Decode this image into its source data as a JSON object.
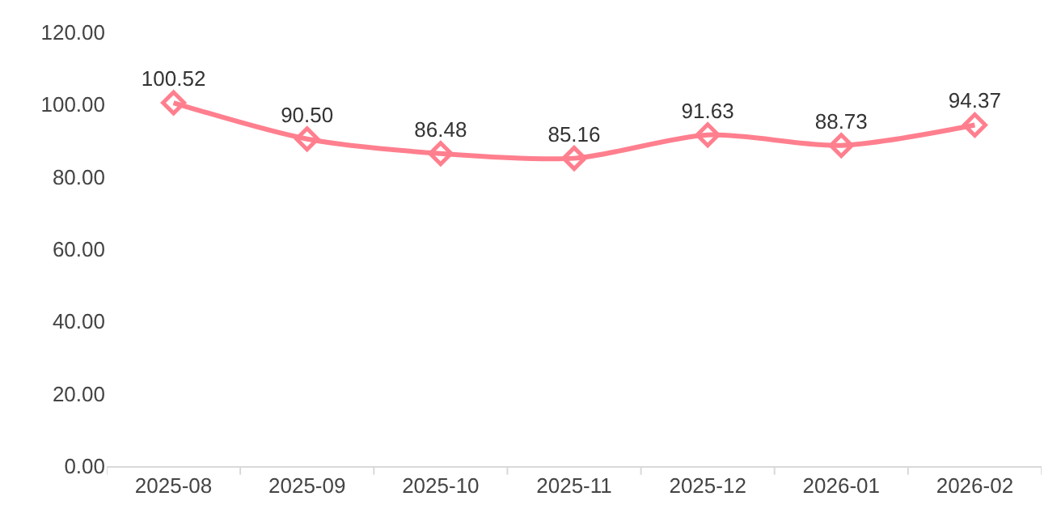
{
  "chart_data": {
    "type": "line",
    "categories": [
      "2025-08",
      "2025-09",
      "2025-10",
      "2025-11",
      "2025-12",
      "2026-01",
      "2026-02"
    ],
    "series": [
      {
        "color": "#ff7f8e",
        "values": [
          100.52,
          90.5,
          86.48,
          85.16,
          91.63,
          88.73,
          94.37
        ],
        "value_labels": [
          "100.52",
          "90.50",
          "86.48",
          "85.16",
          "91.63",
          "88.73",
          "94.37"
        ]
      }
    ],
    "ylim": [
      0,
      120
    ],
    "yticks": [
      {
        "value": 0,
        "label": "0.00"
      },
      {
        "value": 20,
        "label": "20.00"
      },
      {
        "value": 40,
        "label": "40.00"
      },
      {
        "value": 60,
        "label": "60.00"
      },
      {
        "value": 80,
        "label": "80.00"
      },
      {
        "value": 100,
        "label": "100.00"
      },
      {
        "value": 120,
        "label": "120.00"
      }
    ],
    "grid": false,
    "marker": "diamond",
    "line_style": "solid"
  }
}
